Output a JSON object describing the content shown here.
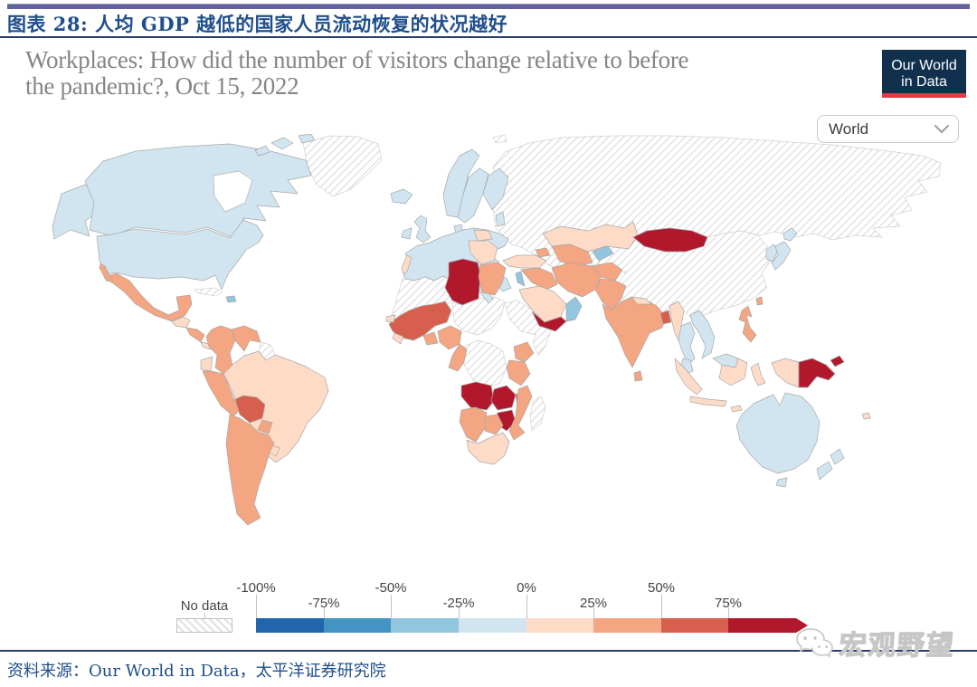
{
  "header": {
    "title": "图表 28:  人均 GDP 越低的国家人员流动恢复的状况越好"
  },
  "chart": {
    "title_line1": "Workplaces: How did the number of visitors change relative to before",
    "title_line2": "the pandemic?, Oct 15, 2022",
    "logo": {
      "line1": "Our World",
      "line2": "in Data",
      "bg": "#10304e",
      "accent": "#e23b41"
    },
    "region_selector": {
      "value": "World"
    }
  },
  "chart_data": {
    "type": "heatmap",
    "subtype": "world-choropleth",
    "metric": "Change in number of visitors to workplaces relative to the pre-pandemic baseline",
    "date": "Oct 15, 2022",
    "legend": {
      "no_data_label": "No data",
      "tick_labels": [
        "-100%",
        "-75%",
        "-50%",
        "-25%",
        "0%",
        "25%",
        "50%",
        "75%"
      ],
      "bands": [
        {
          "range": "-100% to -75%",
          "color": "#2166ac"
        },
        {
          "range": "-75% to -50%",
          "color": "#4393c3"
        },
        {
          "range": "-50% to -25%",
          "color": "#92c5de"
        },
        {
          "range": "-25% to 0%",
          "color": "#d1e5f0"
        },
        {
          "range": "0% to 25%",
          "color": "#fddbc7"
        },
        {
          "range": "25% to 50%",
          "color": "#f4a582"
        },
        {
          "range": "50% to 75%",
          "color": "#d6604d"
        },
        {
          "range": "75% and above",
          "color": "#b2182b"
        }
      ],
      "no_data_fill": "white-with-gray-diagonal-hatch"
    },
    "regions": [
      {
        "name": "canada",
        "band": 3
      },
      {
        "name": "united-states",
        "band": 3
      },
      {
        "name": "alaska",
        "band": 3
      },
      {
        "name": "arctic-islands",
        "band": 3
      },
      {
        "name": "greenland",
        "band": "no-data"
      },
      {
        "name": "iceland",
        "band": 3
      },
      {
        "name": "svalbard",
        "band": "no-data"
      },
      {
        "name": "mexico",
        "band": 5
      },
      {
        "name": "guatemala-belize",
        "band": 4
      },
      {
        "name": "honduras-nicaragua",
        "band": 5
      },
      {
        "name": "costa-rica-panama",
        "band": 4
      },
      {
        "name": "cuba",
        "band": "no-data"
      },
      {
        "name": "hispaniola",
        "band": 2
      },
      {
        "name": "colombia",
        "band": 5
      },
      {
        "name": "venezuela",
        "band": 5
      },
      {
        "name": "guyana-suriname",
        "band": "no-data"
      },
      {
        "name": "ecuador",
        "band": 4
      },
      {
        "name": "peru",
        "band": 5
      },
      {
        "name": "brazil",
        "band": 4
      },
      {
        "name": "bolivia",
        "band": 6
      },
      {
        "name": "paraguay",
        "band": 5
      },
      {
        "name": "uruguay",
        "band": 4
      },
      {
        "name": "argentina-chile",
        "band": 5
      },
      {
        "name": "united-kingdom",
        "band": 3
      },
      {
        "name": "ireland",
        "band": 3
      },
      {
        "name": "norway",
        "band": 3
      },
      {
        "name": "sweden",
        "band": 3
      },
      {
        "name": "finland",
        "band": 3
      },
      {
        "name": "denmark",
        "band": 3
      },
      {
        "name": "baltics",
        "band": 3
      },
      {
        "name": "western-europe",
        "band": 3
      },
      {
        "name": "portugal",
        "band": 4
      },
      {
        "name": "poland",
        "band": 4
      },
      {
        "name": "central-europe",
        "band": 4
      },
      {
        "name": "russia",
        "band": "no-data"
      },
      {
        "name": "kazakhstan",
        "band": 4
      },
      {
        "name": "uzbekistan-turkmenistan",
        "band": 5
      },
      {
        "name": "kyrgyzstan-tajikistan",
        "band": 2
      },
      {
        "name": "caucasus",
        "band": 5
      },
      {
        "name": "turkey",
        "band": 4
      },
      {
        "name": "syria-iraq",
        "band": 5
      },
      {
        "name": "israel-jordan",
        "band": 2
      },
      {
        "name": "saudi-arabia",
        "band": 4
      },
      {
        "name": "yemen",
        "band": 7
      },
      {
        "name": "oman",
        "band": 2
      },
      {
        "name": "iran",
        "band": 5
      },
      {
        "name": "afghanistan",
        "band": 5
      },
      {
        "name": "pakistan",
        "band": 5
      },
      {
        "name": "india",
        "band": 5
      },
      {
        "name": "sri-lanka",
        "band": 5
      },
      {
        "name": "nepal",
        "band": 4
      },
      {
        "name": "bangladesh",
        "band": 6
      },
      {
        "name": "myanmar",
        "band": 4
      },
      {
        "name": "thailand",
        "band": 3
      },
      {
        "name": "vietnam-laos",
        "band": 3
      },
      {
        "name": "malaysia",
        "band": 3
      },
      {
        "name": "china",
        "band": "no-data"
      },
      {
        "name": "mongolia",
        "band": 7
      },
      {
        "name": "south-korea",
        "band": 3
      },
      {
        "name": "japan",
        "band": 3
      },
      {
        "name": "taiwan",
        "band": 5
      },
      {
        "name": "philippines",
        "band": 5
      },
      {
        "name": "indonesia",
        "band": 4
      },
      {
        "name": "papua-new-guinea",
        "band": 7
      },
      {
        "name": "australia",
        "band": 3
      },
      {
        "name": "new-zealand",
        "band": 3
      },
      {
        "name": "fiji",
        "band": 4
      },
      {
        "name": "morocco-algeria",
        "band": "no-data"
      },
      {
        "name": "libya",
        "band": 7
      },
      {
        "name": "egypt",
        "band": 5
      },
      {
        "name": "sudan-chad",
        "band": "no-data"
      },
      {
        "name": "ethiopia-somalia",
        "band": "no-data"
      },
      {
        "name": "senegal",
        "band": 4
      },
      {
        "name": "west-africa",
        "band": 6
      },
      {
        "name": "guinea-coast",
        "band": 4
      },
      {
        "name": "ghana-benin",
        "band": 5
      },
      {
        "name": "nigeria",
        "band": 5
      },
      {
        "name": "cameroon-congo",
        "band": 5
      },
      {
        "name": "dr-congo",
        "band": "no-data"
      },
      {
        "name": "kenya",
        "band": 5
      },
      {
        "name": "tanzania",
        "band": 5
      },
      {
        "name": "angola",
        "band": 7
      },
      {
        "name": "zambia",
        "band": 7
      },
      {
        "name": "zimbabwe",
        "band": 7
      },
      {
        "name": "malawi",
        "band": 6
      },
      {
        "name": "mozambique",
        "band": 5
      },
      {
        "name": "namibia",
        "band": 5
      },
      {
        "name": "botswana",
        "band": 5
      },
      {
        "name": "south-africa",
        "band": 4
      },
      {
        "name": "madagascar",
        "band": "no-data"
      }
    ]
  },
  "footer": {
    "source": "资料来源：Our World in Data，太平洋证券研究院",
    "watermark": "宏观野望"
  }
}
